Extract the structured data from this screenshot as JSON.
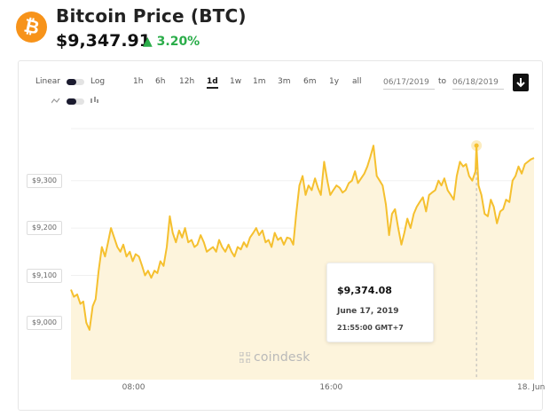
{
  "header": {
    "logo_glyph": "₿",
    "title": "Bitcoin Price (BTC)",
    "price": "$9,347.91",
    "change": "▲ 3.20%",
    "change_color": "#2bad4a",
    "brand_color": "#f7931a"
  },
  "controls": {
    "linear_label": "Linear",
    "log_label": "Log",
    "ranges": [
      "1h",
      "6h",
      "12h",
      "1d",
      "1w",
      "1m",
      "3m",
      "6m",
      "1y",
      "all"
    ],
    "active_range": "1d",
    "date_from": "06/17/2019",
    "to_label": "to",
    "date_to": "06/18/2019",
    "download_icon": "download-icon"
  },
  "tooltip": {
    "price": "$9,374.08",
    "date": "June 17, 2019",
    "time": "21:55:00 GMT+7"
  },
  "watermark": "coindesk",
  "chart_data": {
    "type": "area",
    "title": "",
    "xlabel": "",
    "ylabel": "",
    "x_ticks": [
      "08:00",
      "16:00",
      "18. Jun"
    ],
    "y_ticks": [
      "$9,000",
      "$9,100",
      "$9,200",
      "$9,300"
    ],
    "y_tick_values": [
      9000,
      9100,
      9200,
      9300
    ],
    "ylim": [
      8880,
      9410
    ],
    "xlim": [
      5.5,
      24.25
    ],
    "x_tick_positions": [
      8,
      16,
      24
    ],
    "line_color": "#f5c02f",
    "fill_color": "#fdf4dc",
    "highlight": {
      "x": 21.92,
      "y": 9374.08
    },
    "series": [
      {
        "x": [
          5.5,
          5.62,
          5.75,
          5.88,
          6.0,
          6.12,
          6.25,
          6.38,
          6.5,
          6.62,
          6.75,
          6.88,
          7.0,
          7.12,
          7.25,
          7.38,
          7.5,
          7.62,
          7.75,
          7.88,
          8.0,
          8.12,
          8.25,
          8.38,
          8.5,
          8.62,
          8.75,
          8.88,
          9.0,
          9.12,
          9.25,
          9.38,
          9.5,
          9.62,
          9.75,
          9.88,
          10.0,
          10.12,
          10.25,
          10.38,
          10.5,
          10.62,
          10.75,
          10.88,
          11.0,
          11.12,
          11.25,
          11.38,
          11.5,
          11.62,
          11.75,
          11.88,
          12.0,
          12.12,
          12.25,
          12.38,
          12.5,
          12.62,
          12.75,
          12.88,
          13.0,
          13.12,
          13.25,
          13.38,
          13.5,
          13.62,
          13.75,
          13.88,
          14.0,
          14.12,
          14.25,
          14.38,
          14.5,
          14.62,
          14.75,
          14.88,
          15.0,
          15.12,
          15.25,
          15.38,
          15.5,
          15.62,
          15.75,
          15.88,
          16.0,
          16.12,
          16.25,
          16.38,
          16.5,
          16.62,
          16.75,
          16.88,
          17.0,
          17.12,
          17.25,
          17.38,
          17.5,
          17.62,
          17.75,
          17.88,
          18.0,
          18.12,
          18.25,
          18.38,
          18.5,
          18.62,
          18.75,
          18.88,
          19.0,
          19.12,
          19.25,
          19.38,
          19.5,
          19.62,
          19.75,
          19.88,
          20.0,
          20.12,
          20.25,
          20.38,
          20.5,
          20.62,
          20.75,
          20.88,
          21.0,
          21.12,
          21.25,
          21.38,
          21.5,
          21.62,
          21.75,
          21.88,
          21.92,
          22.0,
          22.12,
          22.25,
          22.38,
          22.5,
          22.62,
          22.75,
          22.88,
          23.0,
          23.12,
          23.25,
          23.38,
          23.5,
          23.62,
          23.75,
          23.88,
          24.0,
          24.12,
          24.25
        ],
        "values": [
          9070,
          9055,
          9060,
          9040,
          9045,
          9000,
          8985,
          9035,
          9050,
          9110,
          9160,
          9140,
          9170,
          9200,
          9180,
          9160,
          9150,
          9165,
          9140,
          9150,
          9130,
          9145,
          9140,
          9120,
          9100,
          9110,
          9095,
          9110,
          9105,
          9130,
          9120,
          9160,
          9225,
          9190,
          9170,
          9195,
          9180,
          9200,
          9170,
          9175,
          9160,
          9165,
          9185,
          9170,
          9150,
          9155,
          9160,
          9150,
          9175,
          9160,
          9150,
          9165,
          9150,
          9140,
          9160,
          9155,
          9170,
          9160,
          9180,
          9190,
          9200,
          9185,
          9195,
          9170,
          9175,
          9160,
          9190,
          9175,
          9180,
          9165,
          9180,
          9178,
          9165,
          9230,
          9290,
          9310,
          9270,
          9290,
          9280,
          9305,
          9285,
          9270,
          9340,
          9300,
          9270,
          9280,
          9290,
          9285,
          9275,
          9280,
          9295,
          9300,
          9320,
          9295,
          9305,
          9315,
          9330,
          9350,
          9374,
          9310,
          9300,
          9290,
          9250,
          9185,
          9230,
          9240,
          9200,
          9165,
          9190,
          9220,
          9200,
          9230,
          9245,
          9255,
          9265,
          9235,
          9270,
          9275,
          9280,
          9300,
          9290,
          9305,
          9280,
          9270,
          9260,
          9310,
          9340,
          9330,
          9335,
          9310,
          9300,
          9320,
          9374.08,
          9290,
          9270,
          9230,
          9225,
          9260,
          9245,
          9210,
          9235,
          9240,
          9260,
          9255,
          9300,
          9310,
          9330,
          9315,
          9335,
          9340,
          9345,
          9348
        ]
      }
    ]
  }
}
